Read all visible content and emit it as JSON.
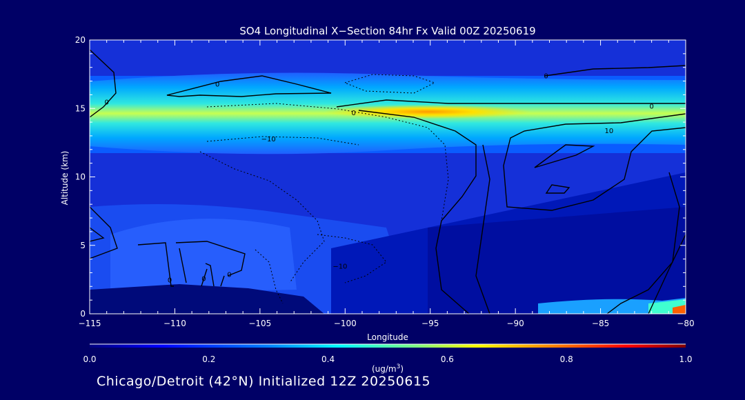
{
  "chart_data": {
    "type": "heatmap",
    "title": "SO4 Longitudinal X−Section 84hr  Fx Valid 00Z 20250619",
    "xlabel": "Longitude",
    "ylabel": "Altitude (km)",
    "xlim": [
      -115,
      -80
    ],
    "ylim": [
      0,
      20
    ],
    "x_ticks": [
      -115,
      -110,
      -105,
      -100,
      -95,
      -90,
      -85,
      -80
    ],
    "x_tick_labels": [
      "−115",
      "−110",
      "−105",
      "−100",
      "−95",
      "−90",
      "−85",
      "−80"
    ],
    "y_ticks": [
      0,
      5,
      10,
      15,
      20
    ],
    "y_tick_labels": [
      "0",
      "5",
      "10",
      "15",
      "20"
    ],
    "colorbar": {
      "range": [
        0,
        1
      ],
      "ticks": [
        0,
        0.2,
        0.4,
        0.6,
        0.8,
        1.0
      ],
      "tick_labels": [
        "0.0",
        "0.2",
        "0.4",
        "0.6",
        "0.8",
        "1.0"
      ],
      "unit_label": "(ug/m",
      "unit_sup": "3",
      "unit_close": ")",
      "colormap": [
        "#000080",
        "#0000ff",
        "#0080ff",
        "#00ffff",
        "#80ff80",
        "#ffff00",
        "#ff8000",
        "#ff0000",
        "#800000"
      ]
    },
    "contour_labels": [
      {
        "text": "0",
        "x": -99.5,
        "y": 14.7
      },
      {
        "text": "0",
        "x": -82.0,
        "y": 15.2
      },
      {
        "text": "10",
        "x": -84.5,
        "y": 13.4
      },
      {
        "text": "−10",
        "x": -104.5,
        "y": 12.8
      },
      {
        "text": "−10",
        "x": -100.3,
        "y": 3.5
      },
      {
        "text": "0",
        "x": -114.0,
        "y": 15.5
      },
      {
        "text": "0",
        "x": -107.5,
        "y": 16.8
      },
      {
        "text": "0",
        "x": -88.2,
        "y": 17.4
      },
      {
        "text": "0",
        "x": -110.3,
        "y": 2.5
      },
      {
        "text": "0",
        "x": -108.3,
        "y": 2.6
      },
      {
        "text": "0",
        "x": -106.8,
        "y": 2.9
      }
    ],
    "grid": false,
    "legend": "colorbar-bottom"
  },
  "footer": {
    "note": "Chicago/Detroit (42°N) Initialized 12Z 20250615"
  }
}
